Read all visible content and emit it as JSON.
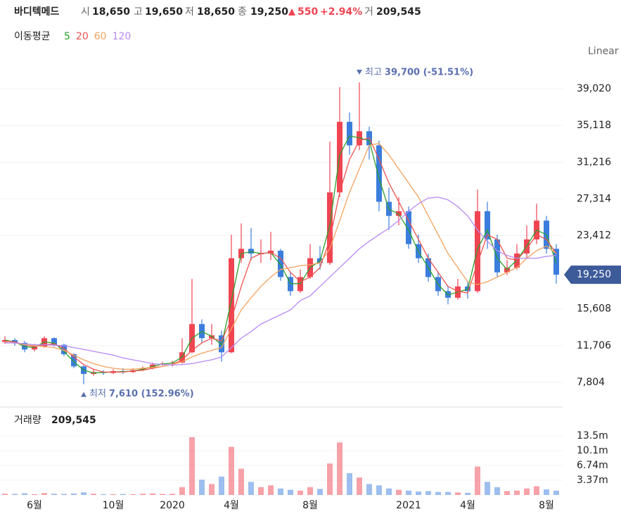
{
  "header": {
    "name": "바디텍메드",
    "fields": [
      {
        "label": "시",
        "value": "18,650"
      },
      {
        "label": "고",
        "value": "19,650"
      },
      {
        "label": "저",
        "value": "18,650"
      },
      {
        "label": "종",
        "value": "19,250"
      }
    ],
    "change": "550",
    "change_pct": "+2.94%",
    "volume_label": "거",
    "volume": "209,545"
  },
  "chart_data": {
    "type": "candlestick",
    "scale_label": "Linear",
    "ma_title": "이동평균",
    "categories": [
      null,
      null,
      null,
      "6월",
      null,
      null,
      null,
      null,
      null,
      null,
      null,
      "10월",
      null,
      null,
      null,
      null,
      null,
      "2020",
      null,
      null,
      null,
      null,
      null,
      "4월",
      null,
      null,
      null,
      null,
      null,
      null,
      null,
      "8월",
      null,
      null,
      null,
      null,
      null,
      null,
      null,
      null,
      null,
      "2021",
      null,
      null,
      null,
      null,
      null,
      "4월",
      null,
      null,
      null,
      null,
      null,
      null,
      null,
      "8월",
      null
    ],
    "open": [
      12100,
      12300,
      12000,
      11300,
      11600,
      12500,
      11800,
      10800,
      9500,
      8700,
      8900,
      8800,
      9000,
      8900,
      9100,
      9300,
      9700,
      9800,
      9900,
      11000,
      14000,
      12500,
      12800,
      11000,
      21000,
      22000,
      21500,
      21500,
      21800,
      19000,
      17500,
      19000,
      21000,
      20500,
      28000,
      35500,
      33000,
      34500,
      33000,
      27000,
      25500,
      26000,
      22500,
      21000,
      19000,
      17500,
      16800,
      18000,
      17500,
      26000,
      23000,
      19500,
      20000,
      21500,
      23000,
      25000,
      22000
    ],
    "high": [
      12700,
      12500,
      12200,
      11900,
      12700,
      12600,
      11900,
      10900,
      9600,
      9200,
      9100,
      9200,
      9300,
      9300,
      9500,
      9900,
      10000,
      10100,
      12500,
      18800,
      14500,
      14000,
      13300,
      23500,
      24700,
      24200,
      23000,
      23800,
      22000,
      19500,
      19800,
      22500,
      22300,
      33400,
      39200,
      36500,
      39700,
      35000,
      33500,
      28500,
      27500,
      26500,
      23500,
      21500,
      19500,
      18000,
      18800,
      18500,
      28300,
      27000,
      23500,
      20800,
      22500,
      24500,
      26800,
      25500,
      22500
    ],
    "low": [
      11900,
      11700,
      11000,
      11100,
      11500,
      11600,
      10600,
      9300,
      7610,
      8500,
      8600,
      8700,
      8700,
      8800,
      9000,
      9200,
      9600,
      9500,
      9800,
      10900,
      12000,
      11800,
      10000,
      10900,
      20500,
      20800,
      20500,
      20800,
      18600,
      17000,
      17300,
      18800,
      19800,
      20300,
      27500,
      32000,
      32500,
      31500,
      26000,
      24000,
      24500,
      22000,
      20500,
      18500,
      17000,
      16100,
      16600,
      16700,
      17300,
      22000,
      19000,
      19200,
      19800,
      21000,
      22500,
      21500,
      18300
    ],
    "close": [
      12300,
      12000,
      11300,
      11600,
      12500,
      11800,
      10800,
      9500,
      8700,
      8900,
      8800,
      9000,
      8900,
      9100,
      9300,
      9700,
      9800,
      9900,
      11000,
      14000,
      12500,
      12800,
      11000,
      21000,
      22000,
      21500,
      21500,
      21800,
      19000,
      17500,
      19000,
      21000,
      20500,
      28000,
      35500,
      33000,
      34500,
      33000,
      27000,
      25500,
      26000,
      22500,
      21000,
      19000,
      17500,
      16800,
      18000,
      17500,
      26000,
      23000,
      19500,
      20000,
      21500,
      23000,
      25000,
      22000,
      19250
    ],
    "ma": [
      {
        "name": "5",
        "color": "#2ca02c",
        "values": [
          12300,
          12100,
          11600,
          11500,
          12100,
          12000,
          11100,
          10000,
          9100,
          8800,
          8850,
          8900,
          8950,
          9000,
          9200,
          9500,
          9750,
          9850,
          10500,
          12500,
          13200,
          12700,
          11800,
          16500,
          21500,
          21700,
          21500,
          21600,
          20300,
          18300,
          18300,
          20000,
          20700,
          24500,
          32000,
          34000,
          33800,
          33500,
          29500,
          26200,
          25700,
          24000,
          21700,
          20000,
          18200,
          17100,
          17400,
          17700,
          22000,
          24000,
          21000,
          19800,
          20800,
          22300,
          24000,
          23500,
          20500
        ]
      },
      {
        "name": "20",
        "color": "#ef5350",
        "values": [
          12200,
          12100,
          11800,
          11600,
          11800,
          11900,
          11400,
          10500,
          9700,
          9200,
          8900,
          8900,
          8900,
          9000,
          9100,
          9300,
          9500,
          9700,
          10200,
          11200,
          12000,
          12500,
          12200,
          14500,
          18000,
          21000,
          21500,
          21600,
          21000,
          19500,
          18500,
          19000,
          20000,
          23000,
          28000,
          31500,
          33500,
          33800,
          31500,
          29000,
          27000,
          25000,
          23000,
          21000,
          19500,
          18000,
          17500,
          17300,
          20500,
          23500,
          23000,
          21000,
          20800,
          22000,
          23500,
          23000,
          21500
        ]
      },
      {
        "name": "60",
        "color": "#f5a25d",
        "values": [
          12000,
          12000,
          11800,
          11700,
          11600,
          11500,
          11200,
          10700,
          10200,
          9800,
          9500,
          9300,
          9200,
          9200,
          9300,
          9400,
          9500,
          9700,
          10000,
          10500,
          10900,
          11200,
          11500,
          13500,
          15500,
          16800,
          18000,
          19000,
          19800,
          20000,
          20200,
          20300,
          20500,
          22000,
          25000,
          28000,
          30500,
          33000,
          33200,
          32000,
          30500,
          29000,
          27500,
          25500,
          23500,
          21500,
          20000,
          18500,
          18200,
          18500,
          19000,
          19500,
          20000,
          21000,
          21800,
          22300,
          21500
        ]
      },
      {
        "name": "120",
        "color": "#b88af5",
        "values": [
          12000,
          12000,
          11900,
          11800,
          11800,
          11750,
          11700,
          11500,
          11300,
          11100,
          10900,
          10700,
          10400,
          10200,
          10000,
          9800,
          9700,
          9650,
          9700,
          9800,
          10000,
          10200,
          10500,
          11500,
          12500,
          13200,
          14000,
          14500,
          15000,
          15500,
          16500,
          17000,
          18000,
          19000,
          20000,
          21000,
          22000,
          22800,
          23500,
          24200,
          25000,
          26000,
          26800,
          27400,
          27500,
          27200,
          26500,
          25500,
          24000,
          22800,
          21800,
          21300,
          21000,
          21000,
          21000,
          21200,
          21300
        ]
      }
    ],
    "up_color": "#f04452",
    "down_color": "#3b7ddd",
    "ylim": [
      5782,
      42091
    ],
    "yticks": [
      {
        "value": 7804,
        "label": "7,804"
      },
      {
        "value": 11706,
        "label": "11,706"
      },
      {
        "value": 15608,
        "label": "15,608"
      },
      {
        "value": 23412,
        "label": "23,412"
      },
      {
        "value": 27314,
        "label": "27,314"
      },
      {
        "value": 31216,
        "label": "31,216"
      },
      {
        "value": 35118,
        "label": "35,118"
      },
      {
        "value": 39020,
        "label": "39,020"
      }
    ],
    "grid": true,
    "last_price": {
      "value": 19250,
      "label": "19,250"
    },
    "annotations": [
      {
        "label": "최고",
        "value_label": "39,700 (-51.51%)"
      },
      {
        "label": "최저",
        "value_label": "7,610 (152.96%)"
      }
    ],
    "volume_title": "거래량",
    "volume": [
      300000,
      250000,
      400000,
      200000,
      450000,
      300000,
      250000,
      350000,
      600000,
      300000,
      200000,
      200000,
      250000,
      200000,
      300000,
      350000,
      250000,
      300000,
      1800000,
      13200000,
      3500000,
      2500000,
      4200000,
      11000000,
      6000000,
      3000000,
      1800000,
      2200000,
      1500000,
      1200000,
      1000000,
      1800000,
      1400000,
      7200000,
      12000000,
      5000000,
      4000000,
      2500000,
      2200000,
      1500000,
      1200000,
      1000000,
      800000,
      900000,
      700000,
      700000,
      600000,
      500000,
      6500000,
      3000000,
      1800000,
      900000,
      1000000,
      1500000,
      2000000,
      1300000,
      1000000
    ],
    "y2lim": [
      0,
      18160000
    ],
    "y2ticks": [
      {
        "value": 3370000,
        "label": "3.37m"
      },
      {
        "value": 6740000,
        "label": "6.74m"
      },
      {
        "value": 10100000,
        "label": "10.1m"
      },
      {
        "value": 13500000,
        "label": "13.5m"
      }
    ]
  }
}
